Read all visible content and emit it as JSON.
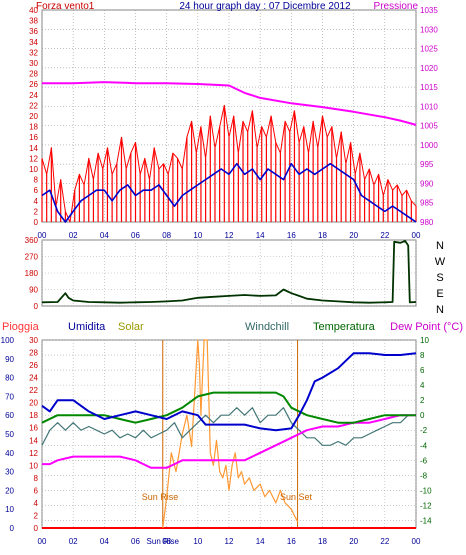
{
  "chart_data": [
    {
      "id": "wind-pressure",
      "type": "line",
      "title": "24 hour graph day : 07 Dicembre 2012",
      "left_label": "Forza vento1",
      "right_label": "Pressione",
      "x_ticks": [
        "00",
        "02",
        "04",
        "06",
        "08",
        "10",
        "12",
        "14",
        "16",
        "18",
        "20",
        "22",
        "00"
      ],
      "left_ticks": [
        0,
        2,
        4,
        6,
        8,
        10,
        12,
        14,
        16,
        18,
        20,
        22,
        24,
        26,
        28,
        30,
        32,
        34,
        36,
        38,
        40
      ],
      "right_ticks": [
        980,
        985,
        990,
        995,
        1000,
        1005,
        1010,
        1015,
        1020,
        1025,
        1030,
        1035
      ],
      "left_range": [
        0,
        40
      ],
      "right_range": [
        980,
        1035
      ],
      "x_range": [
        0,
        24
      ],
      "colors": {
        "gust": "#ff0000",
        "wind": "#0000cc",
        "pressure": "#ff00ff",
        "title": "#000099",
        "left_axis": "#cc0000",
        "right_axis": "#cc00cc"
      },
      "series": [
        {
          "key": "pressure",
          "x": [
            0,
            2,
            4,
            6,
            8,
            10,
            12,
            13,
            14,
            16,
            18,
            20,
            22,
            23,
            24
          ],
          "values": [
            1016.0,
            1016.0,
            1016.3,
            1016.0,
            1016.0,
            1015.8,
            1015.4,
            1013.5,
            1012.2,
            1010.8,
            1009.8,
            1008.6,
            1007.2,
            1006.3,
            1005.2
          ]
        },
        {
          "key": "wind",
          "x": [
            0,
            0.5,
            1,
            1.5,
            2,
            2.5,
            3,
            3.5,
            4,
            4.5,
            5,
            5.5,
            6,
            6.5,
            7,
            7.5,
            8,
            8.5,
            9,
            9.5,
            10,
            10.5,
            11,
            11.5,
            12,
            12.5,
            13,
            13.5,
            14,
            14.5,
            15,
            15.5,
            16,
            16.5,
            17,
            17.5,
            18,
            18.5,
            19,
            19.5,
            20,
            20.5,
            21,
            21.5,
            22,
            22.5,
            23,
            23.5,
            24
          ],
          "values": [
            5,
            6,
            2,
            0,
            2,
            4,
            5,
            6,
            6,
            4,
            6,
            7,
            5,
            6,
            6,
            7,
            5,
            3,
            5,
            6,
            7,
            8,
            9,
            10,
            9,
            11,
            9,
            10,
            8,
            10,
            9,
            8,
            11,
            9,
            10,
            9,
            10,
            11,
            10,
            9,
            8,
            5,
            4,
            3,
            2,
            3,
            2,
            1,
            0
          ]
        },
        {
          "key": "gust",
          "x": [
            0,
            0.3,
            0.6,
            0.9,
            1.2,
            1.5,
            1.8,
            2.1,
            2.4,
            2.7,
            3,
            3.3,
            3.6,
            3.9,
            4.2,
            4.5,
            4.8,
            5.1,
            5.4,
            5.7,
            6,
            6.3,
            6.6,
            6.9,
            7.2,
            7.5,
            7.8,
            8.1,
            8.4,
            8.7,
            9,
            9.3,
            9.6,
            9.9,
            10.2,
            10.5,
            10.8,
            11.1,
            11.4,
            11.7,
            12,
            12.3,
            12.6,
            12.9,
            13.2,
            13.5,
            13.8,
            14.1,
            14.4,
            14.7,
            15,
            15.3,
            15.6,
            15.9,
            16.2,
            16.5,
            16.8,
            17.1,
            17.4,
            17.7,
            18,
            18.3,
            18.6,
            18.9,
            19.2,
            19.5,
            19.8,
            20.1,
            20.4,
            20.7,
            21,
            21.3,
            21.6,
            21.9,
            22.2,
            22.5,
            22.8,
            23.1,
            23.4,
            23.7,
            24
          ],
          "values": [
            12,
            9,
            14,
            3,
            8,
            2,
            0,
            6,
            9,
            7,
            12,
            8,
            13,
            10,
            14,
            9,
            11,
            16,
            10,
            13,
            15,
            9,
            12,
            8,
            14,
            10,
            11,
            9,
            13,
            12,
            10,
            16,
            19,
            13,
            18,
            12,
            20,
            14,
            18,
            22,
            16,
            20,
            13,
            19,
            17,
            21,
            14,
            18,
            16,
            20,
            15,
            13,
            19,
            17,
            21,
            15,
            18,
            13,
            19,
            14,
            20,
            16,
            18,
            12,
            17,
            11,
            15,
            9,
            13,
            8,
            10,
            7,
            9,
            5,
            8,
            6,
            7,
            5,
            6,
            4,
            3
          ]
        }
      ]
    },
    {
      "id": "wind-direction",
      "type": "line",
      "left_ticks": [
        0,
        90,
        180,
        270,
        360
      ],
      "left_range": [
        0,
        360
      ],
      "right_labels": [
        "N",
        "W",
        "S",
        "E",
        "N"
      ],
      "x_range": [
        0,
        24
      ],
      "colors": {
        "direction": "#003300",
        "axis": "#cc0000"
      },
      "series": [
        {
          "key": "direction",
          "x": [
            0,
            1,
            1.5,
            1.7,
            2,
            3,
            4,
            5,
            6,
            7,
            8,
            9,
            10,
            11,
            12,
            13,
            14,
            15,
            15.5,
            16,
            16.5,
            17,
            18,
            19,
            20,
            21,
            22,
            22.5,
            22.6,
            23,
            23.3,
            23.5,
            23.6,
            24
          ],
          "values": [
            20,
            22,
            70,
            45,
            30,
            22,
            20,
            18,
            20,
            22,
            25,
            30,
            45,
            50,
            55,
            60,
            55,
            58,
            90,
            70,
            55,
            40,
            30,
            25,
            20,
            18,
            20,
            22,
            350,
            345,
            355,
            330,
            20,
            22
          ]
        }
      ]
    },
    {
      "id": "rain-humidity-temp",
      "type": "line",
      "labels": {
        "pioggia": "Pioggia",
        "umidita": "Umidita",
        "solar": "Solar",
        "windchill": "Windchill",
        "temperatura": "Temperatura",
        "dewpoint": "Dew Point (°C)",
        "sunrise": "Sun Rise",
        "sunset": "Sun Set"
      },
      "x_ticks": [
        "00",
        "02",
        "04",
        "06",
        "08",
        "Sun Rise",
        "10",
        "12",
        "14",
        "16",
        "18",
        "20",
        "22",
        "00"
      ],
      "humidity_ticks": [
        0,
        10,
        20,
        30,
        40,
        50,
        60,
        70,
        80,
        90,
        100
      ],
      "rain_ticks": [
        0,
        2,
        4,
        6,
        8,
        10,
        12,
        14,
        16,
        18,
        20,
        22,
        24,
        26,
        28,
        30
      ],
      "temp_ticks": [
        -14,
        -12,
        -10,
        -8,
        -6,
        -4,
        -2,
        0,
        2,
        4,
        6,
        8,
        10
      ],
      "humidity_range": [
        0,
        100
      ],
      "rain_range": [
        0,
        30
      ],
      "temp_range": [
        -15,
        10
      ],
      "x_range": [
        0,
        24
      ],
      "sunrise_x": 7.75,
      "sunset_x": 16.4,
      "colors": {
        "humidity": "#0000cc",
        "temperature": "#008800",
        "windchill": "#447777",
        "dewpoint": "#ff00ff",
        "solar": "#ff9933",
        "rain": "#ff0000",
        "pioggia_label": "#ff3333",
        "umidita_label": "#000099",
        "solar_label": "#999900",
        "windchill_label": "#336666",
        "temperatura_label": "#006600",
        "dewpoint_label": "#cc00cc"
      },
      "series": [
        {
          "key": "humidity",
          "unit": "%",
          "x": [
            0,
            0.5,
            1,
            2,
            3,
            4,
            5,
            6,
            7,
            8,
            9,
            10,
            10.5,
            11,
            12,
            13,
            14,
            15,
            16,
            16.5,
            17,
            17.5,
            18,
            19,
            20,
            21,
            22,
            23,
            24
          ],
          "values": [
            65,
            62,
            68,
            68,
            62,
            58,
            60,
            62,
            60,
            58,
            62,
            60,
            55,
            55,
            55,
            55,
            53,
            52,
            53,
            60,
            68,
            78,
            80,
            85,
            93,
            93,
            92,
            92,
            93
          ]
        },
        {
          "key": "temperature",
          "unit": "°C",
          "x": [
            0,
            1,
            2,
            3,
            4,
            5,
            6,
            7,
            8,
            9,
            10,
            11,
            12,
            13,
            14,
            15,
            15.5,
            16,
            17,
            18,
            19,
            20,
            21,
            22,
            23,
            24
          ],
          "values": [
            -1,
            0,
            0,
            0,
            0,
            -0.5,
            -1,
            -0.5,
            0,
            1,
            2.5,
            3,
            3,
            3,
            3,
            3,
            2.5,
            1,
            0,
            -0.5,
            -1,
            -1,
            -0.5,
            0,
            0,
            0
          ]
        },
        {
          "key": "windchill",
          "unit": "°C",
          "x": [
            0,
            0.5,
            1,
            1.5,
            2,
            2.5,
            3,
            3.5,
            4,
            4.5,
            5,
            5.5,
            6,
            6.5,
            7,
            7.5,
            8,
            8.5,
            9,
            9.5,
            10,
            10.5,
            11,
            11.5,
            12,
            12.5,
            13,
            13.5,
            14,
            14.5,
            15,
            15.5,
            16,
            16.5,
            17,
            17.5,
            18,
            18.5,
            19,
            19.5,
            20,
            20.5,
            21,
            21.5,
            22,
            22.5,
            23,
            23.5,
            24
          ],
          "values": [
            -4,
            -2,
            -1,
            -2,
            -1,
            -2,
            -1.5,
            -2,
            -2.5,
            -2,
            -3,
            -2.5,
            -3,
            -2,
            -3,
            -2.5,
            -2,
            -1,
            -3,
            -2,
            -1,
            0,
            -1,
            0,
            0,
            1,
            0,
            1,
            -1,
            0,
            0,
            1,
            -1,
            -2,
            -3,
            -3,
            -4,
            -4,
            -3.5,
            -4,
            -3,
            -3,
            -2.5,
            -2,
            -1.5,
            -1,
            -1,
            0,
            0
          ]
        },
        {
          "key": "dewpoint",
          "unit": "°C",
          "x": [
            0,
            0.5,
            1,
            2,
            3,
            4,
            5,
            6,
            6.5,
            7,
            8,
            8.5,
            9,
            9.5,
            10,
            11,
            12,
            13,
            14,
            15,
            16,
            16.5,
            17,
            18,
            19,
            20,
            21,
            22,
            23,
            24
          ],
          "values": [
            -6.5,
            -6.5,
            -6,
            -5.5,
            -5.5,
            -5.5,
            -5.5,
            -6,
            -6.5,
            -7,
            -7,
            -6.5,
            -6,
            -6,
            -6,
            -6,
            -6,
            -6,
            -5,
            -4,
            -3,
            -2.5,
            -2,
            -1.5,
            -1.5,
            -1,
            -1,
            -0.5,
            0,
            0
          ]
        },
        {
          "key": "solar",
          "unit": "",
          "x": [
            7.75,
            8,
            8.3,
            8.6,
            9,
            9.3,
            9.6,
            10,
            10.1,
            10.2,
            10.4,
            10.6,
            10.8,
            11,
            11.2,
            11.4,
            11.6,
            11.8,
            12,
            12.2,
            12.4,
            12.6,
            12.8,
            13,
            13.3,
            13.6,
            14,
            14.3,
            14.6,
            15,
            15.3,
            15.6,
            16,
            16.2,
            16.4
          ],
          "values": [
            0,
            5,
            12,
            9,
            15,
            18,
            13,
            30,
            26,
            18,
            30,
            30,
            12,
            10,
            14,
            9,
            8,
            10,
            6,
            10,
            12,
            8,
            9,
            7,
            8,
            6,
            7,
            5,
            6,
            4,
            6,
            4,
            3,
            2,
            1
          ]
        },
        {
          "key": "rain",
          "unit": "",
          "x": [
            0,
            24
          ],
          "values": [
            0,
            0
          ]
        }
      ]
    }
  ]
}
